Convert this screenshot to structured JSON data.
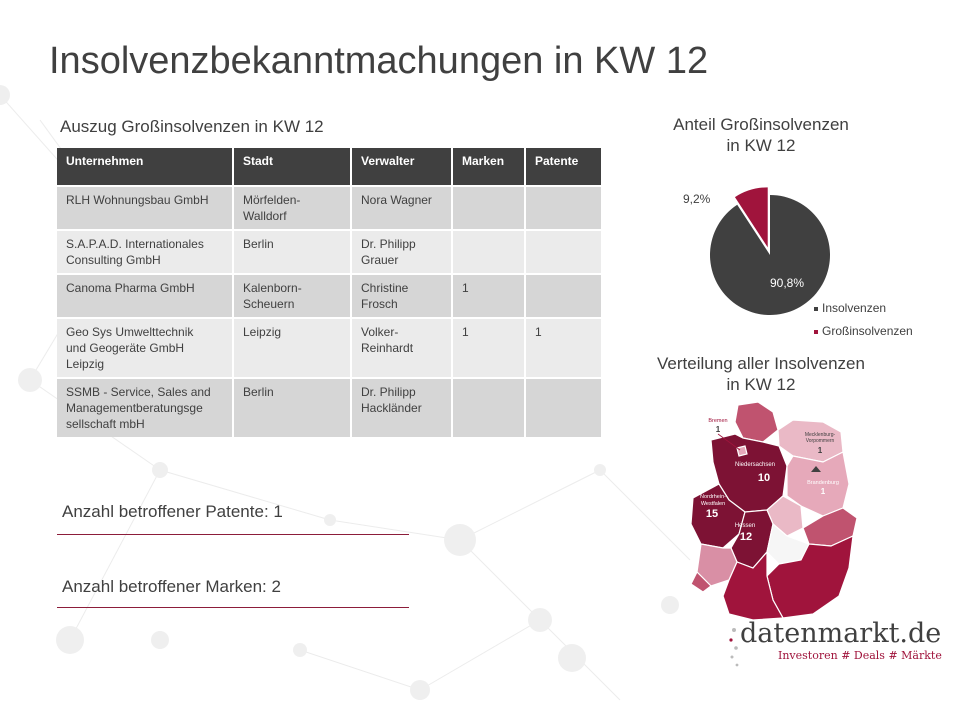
{
  "slide": {
    "title": "Insolvenzbekanntmachungen in KW 12",
    "table_title": "Auszug Großinsolvenzen in KW 12"
  },
  "table": {
    "headers": [
      "Unternehmen",
      "Stadt",
      "Verwalter",
      "Marken",
      "Patente"
    ],
    "rows": [
      [
        "RLH Wohnungsbau  GmbH",
        "Mörfelden-\nWalldorf",
        "Nora  Wagner",
        "",
        ""
      ],
      [
        "S.A.P.A.D.  Internationales\nConsulting  GmbH",
        "Berlin",
        "Dr. Philipp\nGrauer",
        "",
        ""
      ],
      [
        "Canoma  Pharma  GmbH",
        "Kalenborn-\nScheuern",
        "Christine\nFrosch",
        "1",
        ""
      ],
      [
        "Geo Sys Umwelttechnik\nund Geogeräte  GmbH\nLeipzig",
        "Leipzig",
        "Volker-\nReinhardt",
        "1",
        "1"
      ],
      [
        "SSMB - Service, Sales and\nManagementberatungsge\nsellschaft mbH",
        "Berlin",
        "Dr. Philipp\nHackländer",
        "",
        ""
      ]
    ]
  },
  "stats": {
    "patents": "Anzahl betroffener Patente: 1",
    "marks": "Anzahl betroffener Marken: 2"
  },
  "pie_chart": {
    "title_line1": "Anteil Großinsolvenzen",
    "title_line2": "in KW 12",
    "label_small": "9,2%",
    "label_large": "90,8%",
    "legend": [
      "Insolvenzen",
      "Großinsolvenzen"
    ]
  },
  "chart_data": {
    "type": "pie",
    "title": "Anteil Großinsolvenzen in KW 12",
    "series": [
      {
        "name": "Insolvenzen",
        "value": 90.8,
        "color": "#404040"
      },
      {
        "name": "Großinsolvenzen",
        "value": 9.2,
        "color": "#a0143c"
      }
    ],
    "legend_position": "bottom-right"
  },
  "map": {
    "title_line1": "Verteilung aller Insolvenzen",
    "title_line2": "in KW 12",
    "regions": [
      {
        "name": "Bremen",
        "value": "1"
      },
      {
        "name": "Mecklenburg-\nVorpommern",
        "value": "1"
      },
      {
        "name": "Niedersachsen",
        "value": "10"
      },
      {
        "name": "Brandenburg",
        "value": "1"
      },
      {
        "name": "Nordrhein-\nWestfalen",
        "value": "15"
      },
      {
        "name": "Hessen",
        "value": "12"
      }
    ]
  },
  "logo": {
    "name": "datenmarkt.de",
    "tagline": "Investoren # Deals # Märkte"
  },
  "colors": {
    "dark": "#404040",
    "accent": "#a0143c",
    "table_header": "#404040",
    "row_odd": "#d6d6d6",
    "row_even": "#ebebeb"
  }
}
